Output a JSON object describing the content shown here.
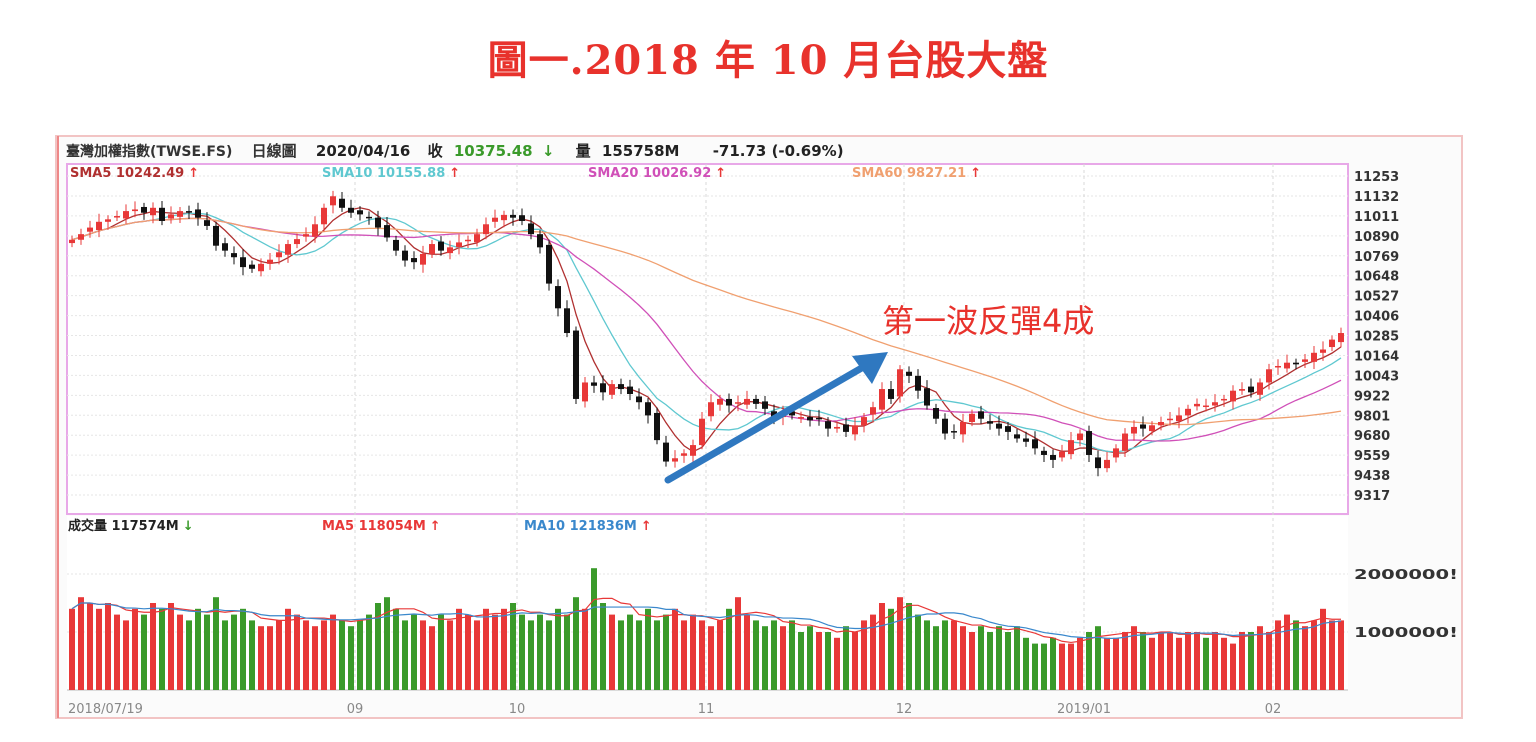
{
  "title": "圖一.2018 年 10 月台股大盤",
  "header": {
    "name": "臺灣加權指數(TWSE.FS)",
    "type": "日線圖",
    "date": "2020/04/16",
    "close_label": "收",
    "close": "10375.48",
    "close_arrow": "↓",
    "volume_label": "量",
    "volume": "155758M",
    "change": "-71.73 (-0.69%)"
  },
  "price_legend": [
    {
      "text": "SMA5 10242.49",
      "arrow": "↑",
      "color": "#b03030"
    },
    {
      "text": "SMA10 10155.88",
      "arrow": "↑",
      "color": "#5fc8d0"
    },
    {
      "text": "SMA20 10026.92",
      "arrow": "↑",
      "color": "#d050b8"
    },
    {
      "text": "SMA60 9827.21",
      "arrow": "↑",
      "color": "#f0a070"
    }
  ],
  "volume_legend": [
    {
      "text": "成交量 117574M",
      "arrow": "↓",
      "color": "#222222",
      "arrow_color": "#3a9a2a"
    },
    {
      "text": "MA5 118054M",
      "arrow": "↑",
      "color": "#e83838",
      "arrow_color": "#e83838"
    },
    {
      "text": "MA10 121836M",
      "arrow": "↑",
      "color": "#3a88cc",
      "arrow_color": "#e83838"
    }
  ],
  "annotation": {
    "text": "第一波反彈4成",
    "arrow_color": "#2f78c0"
  },
  "colors": {
    "up": "#e83838",
    "down_candle": "#111111",
    "down_volume": "#3a9a2a",
    "frame": "#e8a8e8"
  },
  "chart_data": {
    "type": "candlestick",
    "price_ticks": [
      11253,
      11132,
      11011,
      10890,
      10769,
      10648,
      10527,
      10406,
      10285,
      10164,
      10043,
      9922,
      9801,
      9680,
      9559,
      9438,
      9317
    ],
    "volume_ticks": [
      {
        "value": 2000000,
        "label": "2000000M"
      },
      {
        "value": 1000000,
        "label": "1000000M"
      }
    ],
    "x_ticks": [
      {
        "day": 0,
        "label": "2018/07/19"
      },
      {
        "day": 31,
        "label": "09"
      },
      {
        "day": 49,
        "label": "10"
      },
      {
        "day": 70,
        "label": "11"
      },
      {
        "day": 92,
        "label": "12"
      },
      {
        "day": 112,
        "label": "2019/01"
      },
      {
        "day": 133,
        "label": "02"
      }
    ],
    "grid": true,
    "close": [
      10866,
      10900,
      10940,
      10975,
      10990,
      11010,
      11040,
      11050,
      11030,
      11060,
      10980,
      11020,
      11040,
      11035,
      11000,
      10950,
      10830,
      10800,
      10760,
      10700,
      10690,
      10720,
      10745,
      10790,
      10840,
      10870,
      10900,
      10960,
      11060,
      11130,
      11060,
      11030,
      11020,
      11000,
      10940,
      10880,
      10800,
      10740,
      10730,
      10780,
      10840,
      10800,
      10820,
      10850,
      10866,
      10900,
      10960,
      11000,
      11017,
      11000,
      10980,
      10900,
      10820,
      10600,
      10450,
      10300,
      9900,
      10000,
      9980,
      9940,
      9990,
      9960,
      9930,
      9880,
      9800,
      9650,
      9520,
      9540,
      9570,
      9620,
      9780,
      9880,
      9900,
      9860,
      9880,
      9900,
      9870,
      9840,
      9790,
      9810,
      9800,
      9790,
      9770,
      9780,
      9720,
      9730,
      9700,
      9740,
      9790,
      9850,
      9960,
      9900,
      10080,
      10040,
      9950,
      9860,
      9780,
      9690,
      9700,
      9760,
      9810,
      9780,
      9750,
      9720,
      9700,
      9660,
      9640,
      9600,
      9560,
      9530,
      9580,
      9650,
      9690,
      9560,
      9480,
      9530,
      9600,
      9690,
      9730,
      9720,
      9740,
      9760,
      9780,
      9800,
      9840,
      9870,
      9860,
      9880,
      9900,
      9950,
      9960,
      9940,
      10000,
      10080,
      10100,
      10120,
      10110,
      10140,
      10180,
      10200,
      10260,
      10300
    ],
    "volume": [
      1400000,
      1600000,
      1500000,
      1400000,
      1500000,
      1300000,
      1200000,
      1400000,
      1300000,
      1500000,
      1400000,
      1500000,
      1300000,
      1200000,
      1400000,
      1300000,
      1600000,
      1200000,
      1300000,
      1400000,
      1200000,
      1100000,
      1100000,
      1200000,
      1400000,
      1300000,
      1200000,
      1100000,
      1200000,
      1300000,
      1200000,
      1100000,
      1200000,
      1300000,
      1500000,
      1600000,
      1400000,
      1200000,
      1300000,
      1200000,
      1100000,
      1300000,
      1200000,
      1400000,
      1300000,
      1200000,
      1400000,
      1300000,
      1400000,
      1500000,
      1300000,
      1200000,
      1300000,
      1200000,
      1400000,
      1300000,
      1600000,
      1400000,
      2100000,
      1500000,
      1300000,
      1200000,
      1300000,
      1200000,
      1400000,
      1200000,
      1300000,
      1400000,
      1200000,
      1300000,
      1200000,
      1100000,
      1200000,
      1400000,
      1600000,
      1300000,
      1200000,
      1100000,
      1200000,
      1100000,
      1200000,
      1000000,
      1100000,
      1000000,
      1000000,
      900000,
      1100000,
      1000000,
      1200000,
      1300000,
      1500000,
      1400000,
      1600000,
      1500000,
      1300000,
      1200000,
      1100000,
      1200000,
      1200000,
      1100000,
      1000000,
      1100000,
      1000000,
      1100000,
      1000000,
      1100000,
      900000,
      800000,
      800000,
      900000,
      800000,
      800000,
      900000,
      1000000,
      1100000,
      900000,
      900000,
      1000000,
      1100000,
      1000000,
      900000,
      1000000,
      1000000,
      900000,
      1000000,
      1000000,
      900000,
      1000000,
      900000,
      800000,
      1000000,
      1000000,
      1100000,
      1000000,
      1200000,
      1300000,
      1200000,
      1100000,
      1200000,
      1400000,
      1200000,
      1200000
    ]
  }
}
